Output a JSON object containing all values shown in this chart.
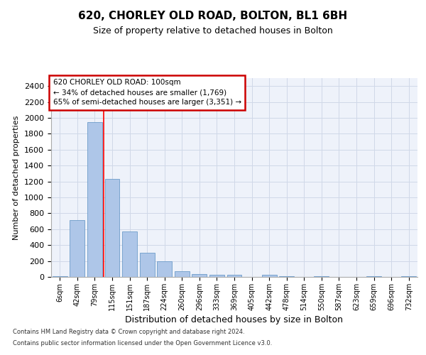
{
  "title1": "620, CHORLEY OLD ROAD, BOLTON, BL1 6BH",
  "title2": "Size of property relative to detached houses in Bolton",
  "xlabel": "Distribution of detached houses by size in Bolton",
  "ylabel": "Number of detached properties",
  "categories": [
    "6sqm",
    "42sqm",
    "79sqm",
    "115sqm",
    "151sqm",
    "187sqm",
    "224sqm",
    "260sqm",
    "296sqm",
    "333sqm",
    "369sqm",
    "405sqm",
    "442sqm",
    "478sqm",
    "514sqm",
    "550sqm",
    "587sqm",
    "623sqm",
    "659sqm",
    "696sqm",
    "732sqm"
  ],
  "values": [
    10,
    710,
    1950,
    1230,
    575,
    305,
    200,
    75,
    38,
    28,
    28,
    0,
    25,
    12,
    0,
    12,
    0,
    0,
    10,
    0,
    10
  ],
  "bar_color": "#aec6e8",
  "bar_edge_color": "#5a8fc2",
  "grid_color": "#d0d8e8",
  "background_color": "#eef2fa",
  "property_line_bar_idx": 2,
  "annotation_text": "620 CHORLEY OLD ROAD: 100sqm\n← 34% of detached houses are smaller (1,769)\n65% of semi-detached houses are larger (3,351) →",
  "annotation_box_facecolor": "#ffffff",
  "annotation_box_edgecolor": "#cc0000",
  "footer1": "Contains HM Land Registry data © Crown copyright and database right 2024.",
  "footer2": "Contains public sector information licensed under the Open Government Licence v3.0.",
  "ylim": [
    0,
    2500
  ],
  "yticks": [
    0,
    200,
    400,
    600,
    800,
    1000,
    1200,
    1400,
    1600,
    1800,
    2000,
    2200,
    2400
  ],
  "title1_fontsize": 11,
  "title2_fontsize": 9,
  "ylabel_fontsize": 8,
  "xlabel_fontsize": 9,
  "tick_fontsize": 8,
  "xtick_fontsize": 7
}
